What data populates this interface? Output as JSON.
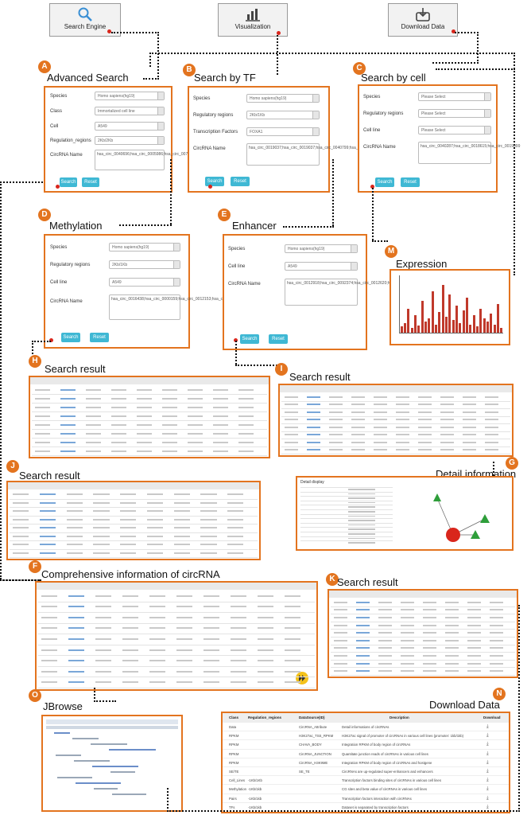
{
  "nav": {
    "search_engine": "Search Engine",
    "visualization": "Visualization",
    "download_data": "Download Data"
  },
  "panelA": {
    "badge": "A",
    "title": "Advanced Search",
    "fields": [
      {
        "label": "Species",
        "value": "Homo sapiens(hg19)"
      },
      {
        "label": "Class",
        "value": "Immortalized cell line"
      },
      {
        "label": "Cell",
        "value": "A549"
      },
      {
        "label": "Regulation_regions",
        "value": "2Kb/2Kb"
      }
    ],
    "circrna_label": "CircRNA Name",
    "circrna_value": "hsa_circ_0040696;hsa_circ_0005986;hsa_circ_0076091;hsa_circ_0075774;hsa_circ_007808",
    "search": "Search",
    "reset": "Reset"
  },
  "panelB": {
    "badge": "B",
    "title": "Search by TF",
    "fields": [
      {
        "label": "Species",
        "value": "Homo sapiens(hg19)"
      },
      {
        "label": "Regulatory regions",
        "value": "2Kb/1Kb"
      },
      {
        "label": "Transcription Factors",
        "value": "FOXA1"
      }
    ],
    "circrna_label": "CircRNA Name",
    "circrna_value": "hsa_circ_0019037;hsa_circ_0019037;hsa_circ_0040799;hsa_circ_0040699;hsa_circ_004098",
    "search": "Search",
    "reset": "Reset"
  },
  "panelC": {
    "badge": "C",
    "title": "Search by cell",
    "fields": [
      {
        "label": "Species",
        "value": "Please Select"
      },
      {
        "label": "Regulatory regions",
        "value": "Please Select"
      },
      {
        "label": "Cell line",
        "value": "Please Select"
      }
    ],
    "circrna_label": "CircRNA Name",
    "circrna_value": "hsa_circ_0040287;hsa_circ_0018615;hsa_circ_0019099",
    "search": "Search",
    "reset": "Reset"
  },
  "panelD": {
    "badge": "D",
    "title": "Methylation",
    "fields": [
      {
        "label": "Species",
        "value": "Homo sapiens(hg19)"
      },
      {
        "label": "Regulatory regions",
        "value": "2Kb/1Kb"
      },
      {
        "label": "Cell line",
        "value": "A549"
      }
    ],
    "circrna_label": "CircRNA Name",
    "circrna_value": "hsa_circ_0016438;hsa_circ_0000159;hsa_circ_0012153;hsa_circ_0015814;hsa_circ_0012073",
    "search": "Search",
    "reset": "Reset"
  },
  "panelE": {
    "badge": "E",
    "title": "Enhancer",
    "fields": [
      {
        "label": "Species",
        "value": "Homo sapiens(hg19)"
      },
      {
        "label": "Cell line",
        "value": "A549"
      }
    ],
    "circrna_label": "CircRNA Name",
    "circrna_value": "hsa_circ_0012918;hsa_circ_0092374;hsa_circ_0012620;hsa_circ_0045849;hsa_circ_0045850",
    "search": "Search",
    "reset": "Reset"
  },
  "panelM": {
    "badge": "M",
    "title": "Expression"
  },
  "panelH": {
    "badge": "H",
    "title": "Search result"
  },
  "panelI": {
    "badge": "I",
    "title": "Search result"
  },
  "panelJ": {
    "badge": "J",
    "title": "Search result"
  },
  "panelG": {
    "badge": "G",
    "title": "Detail information",
    "subtitle": "Detail display"
  },
  "panelF": {
    "badge": "F",
    "title": "Comprehensive information of circRNA"
  },
  "panelK": {
    "badge": "K",
    "title": "Search result"
  },
  "panelO": {
    "badge": "O",
    "title": "JBrowse"
  },
  "panelN": {
    "badge": "N",
    "title": "Download Data",
    "columns": [
      "Class",
      "Regulation_regions",
      "DataSource(ID)",
      "Description",
      "Download"
    ],
    "rows": [
      {
        "cls": "Data",
        "region": "",
        "src": "CircRNA_Attribute",
        "desc": "Detail informations of circRNAs"
      },
      {
        "cls": "RPKM",
        "region": "",
        "src": "H3K27ac_TSS_RPKM",
        "desc": "H3K27ac signal of promoter of circRNAs in various cell lines (promoter: 1kb/1kb)"
      },
      {
        "cls": "RPKM",
        "region": "",
        "src": "CHAVA_BODY",
        "desc": "Integration RPKM of body region of circRNAs"
      },
      {
        "cls": "RPKM",
        "region": "",
        "src": "CircRNA_JUNCTION",
        "desc": "Quantitate junction reads of circRNAs in various cell lines"
      },
      {
        "cls": "RPKM",
        "region": "",
        "src": "CircRNA_H3K9ME",
        "desc": "Integration RPKM of body region of circRNAs and hostgene"
      },
      {
        "cls": "SE/TE",
        "region": "",
        "src": "SE_TE",
        "desc": "CircRNAs are up-regulated super-enhancers and enhancers"
      },
      {
        "cls": "Cell_Lines",
        "region": "-1Kb/1Kb",
        "src": "",
        "desc": "Transcription factors binding sites of circRNAs in various cell lines"
      },
      {
        "cls": "Methylation",
        "region": "-1Kb/1kb",
        "src": "",
        "desc": "CG sites and beta value of circRNAs in various cell lines"
      },
      {
        "cls": "Pairs",
        "region": "-1Kb/1kb",
        "src": "",
        "desc": "Transcription factors interaction with circRNAs"
      },
      {
        "cls": "TFs",
        "region": "-1Kb/1kb",
        "src": "",
        "desc": "Dataset is separated by transcription factors"
      }
    ]
  }
}
